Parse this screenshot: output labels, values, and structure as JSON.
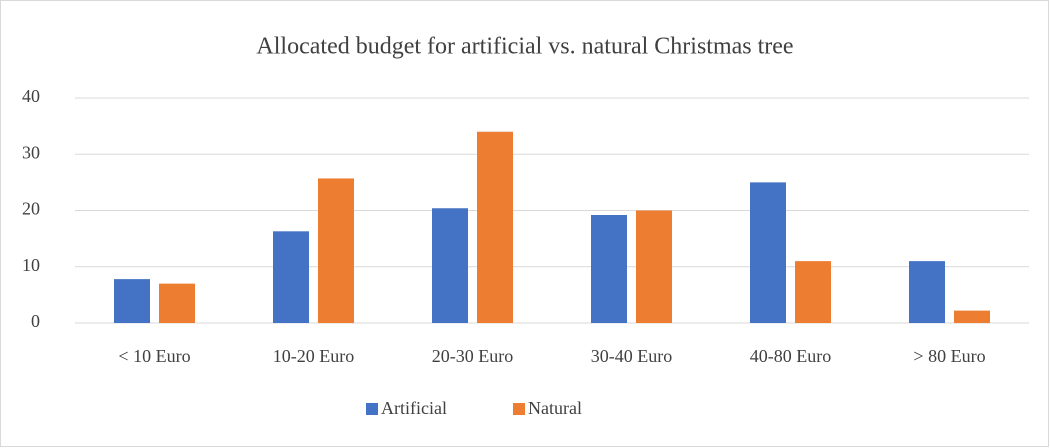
{
  "chart_data": {
    "type": "bar",
    "title": "Allocated budget for artificial vs. natural Christmas tree",
    "categories": [
      "< 10 Euro",
      "10-20 Euro",
      "20-30 Euro",
      "30-40 Euro",
      "40-80 Euro",
      "> 80 Euro"
    ],
    "series": [
      {
        "name": "Artificial",
        "color": "#4472c4",
        "values": [
          7.8,
          16.3,
          20.4,
          19.2,
          25,
          11
        ]
      },
      {
        "name": "Natural",
        "color": "#ed7d31",
        "values": [
          7,
          25.7,
          34,
          20,
          11,
          2.2
        ]
      }
    ],
    "ylim": [
      0,
      40
    ],
    "yticks": [
      0,
      10,
      20,
      30,
      40
    ],
    "grid": true,
    "legend": "bottom"
  }
}
